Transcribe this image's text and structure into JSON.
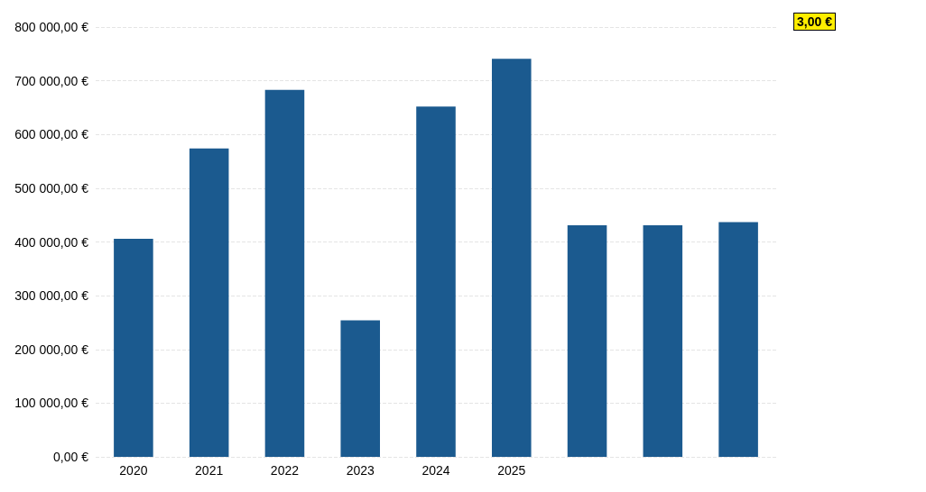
{
  "chart_data": {
    "type": "bar",
    "categories": [
      "2020",
      "2021",
      "2022",
      "2023",
      "2024",
      "2025",
      null,
      null,
      null
    ],
    "values": [
      406000,
      574000,
      683000,
      254000,
      652000,
      741000,
      431000,
      431000,
      437000
    ],
    "color": "#1b5a8f",
    "ylim": [
      0,
      800000
    ],
    "yticks": [
      {
        "value": 0,
        "label": "0,00 €"
      },
      {
        "value": 100000,
        "label": "100 000,00 €"
      },
      {
        "value": 200000,
        "label": "200 000,00 €"
      },
      {
        "value": 300000,
        "label": "300 000,00 €"
      },
      {
        "value": 400000,
        "label": "400 000,00 €"
      },
      {
        "value": 500000,
        "label": "500 000,00 €"
      },
      {
        "value": 600000,
        "label": "600 000,00 €"
      },
      {
        "value": 700000,
        "label": "700 000,00 €"
      },
      {
        "value": 800000,
        "label": "800 000,00 €"
      }
    ],
    "grid": "y",
    "annotations": [
      "3,00 €"
    ]
  }
}
